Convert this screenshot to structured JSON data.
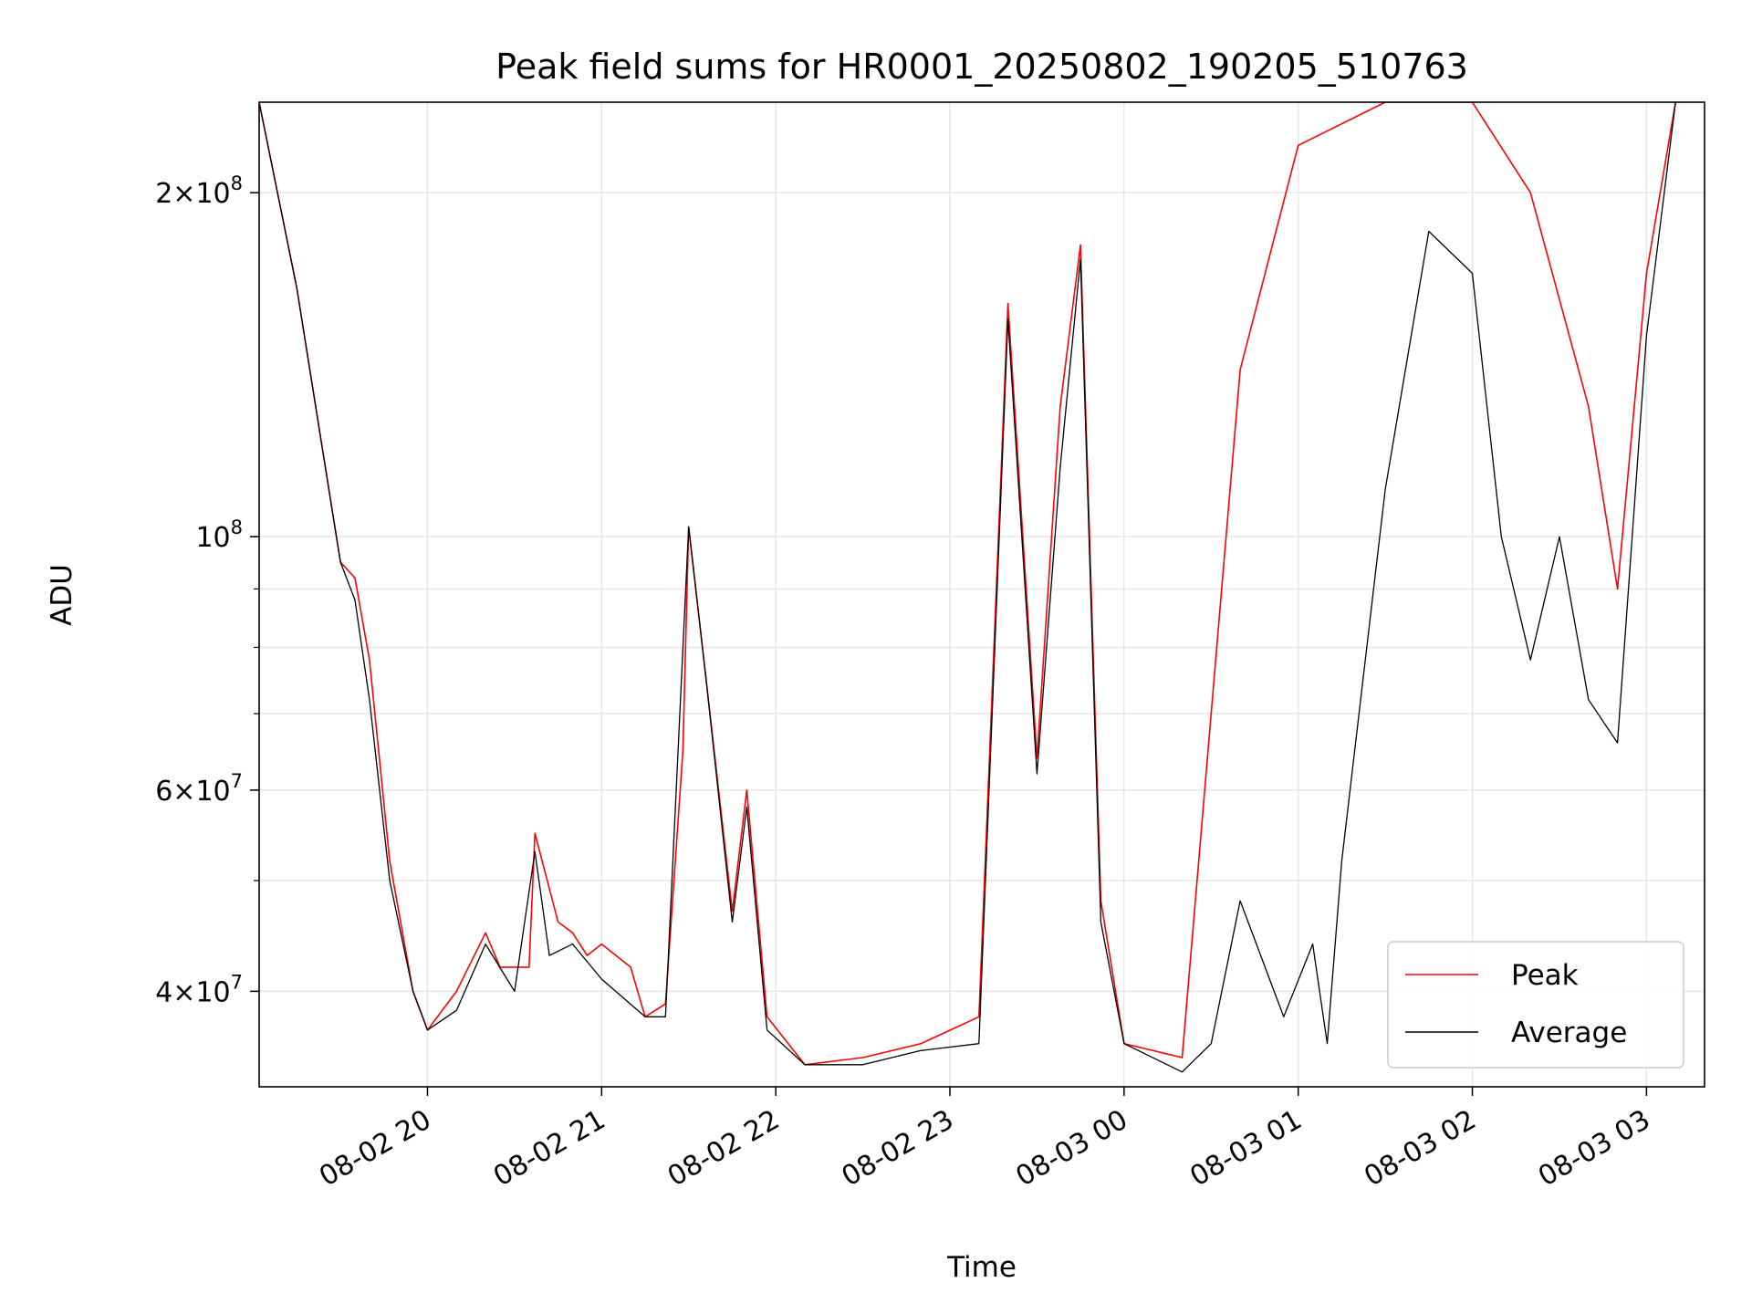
{
  "chart_data": {
    "type": "line",
    "title": "Peak field sums for HR0001_20250802_190205_510763",
    "xlabel": "Time",
    "ylabel": "ADU",
    "yscale": "log",
    "grid": true,
    "legend_position": "lower-right",
    "x_range": [
      "2025-08-02 19:02",
      "2025-08-03 03:20"
    ],
    "ylim": [
      33000000,
      240000000
    ],
    "x_ticks": [
      {
        "t": "2025-08-02 20:00",
        "label": "08-02 20"
      },
      {
        "t": "2025-08-02 21:00",
        "label": "08-02 21"
      },
      {
        "t": "2025-08-02 22:00",
        "label": "08-02 22"
      },
      {
        "t": "2025-08-02 23:00",
        "label": "08-02 23"
      },
      {
        "t": "2025-08-03 00:00",
        "label": "08-03 00"
      },
      {
        "t": "2025-08-03 01:00",
        "label": "08-03 01"
      },
      {
        "t": "2025-08-03 02:00",
        "label": "08-03 02"
      },
      {
        "t": "2025-08-03 03:00",
        "label": "08-03 03"
      }
    ],
    "y_ticks": [
      {
        "value": 40000000,
        "base": "4",
        "exp": "7"
      },
      {
        "value": 60000000,
        "base": "6",
        "exp": "7"
      },
      {
        "value": 100000000,
        "base": "",
        "exp": "8"
      },
      {
        "value": 200000000,
        "base": "2",
        "exp": "8"
      }
    ],
    "series": [
      {
        "name": "Peak",
        "color": "#ff0000",
        "points": [
          [
            "2025-08-02 19:02",
            240000000
          ],
          [
            "2025-08-02 19:15",
            165000000
          ],
          [
            "2025-08-02 19:30",
            95000000
          ],
          [
            "2025-08-02 19:35",
            92000000
          ],
          [
            "2025-08-02 19:40",
            78000000
          ],
          [
            "2025-08-02 19:47",
            52000000
          ],
          [
            "2025-08-02 19:55",
            40000000
          ],
          [
            "2025-08-02 20:00",
            37000000
          ],
          [
            "2025-08-02 20:10",
            40000000
          ],
          [
            "2025-08-02 20:20",
            45000000
          ],
          [
            "2025-08-02 20:25",
            42000000
          ],
          [
            "2025-08-02 20:35",
            42000000
          ],
          [
            "2025-08-02 20:37",
            55000000
          ],
          [
            "2025-08-02 20:45",
            46000000
          ],
          [
            "2025-08-02 20:50",
            45000000
          ],
          [
            "2025-08-02 20:55",
            43000000
          ],
          [
            "2025-08-02 21:00",
            44000000
          ],
          [
            "2025-08-02 21:10",
            42000000
          ],
          [
            "2025-08-02 21:15",
            38000000
          ],
          [
            "2025-08-02 21:22",
            39000000
          ],
          [
            "2025-08-02 21:28",
            65000000
          ],
          [
            "2025-08-02 21:30",
            102000000
          ],
          [
            "2025-08-02 21:36",
            75000000
          ],
          [
            "2025-08-02 21:45",
            47000000
          ],
          [
            "2025-08-02 21:50",
            60000000
          ],
          [
            "2025-08-02 21:57",
            38000000
          ],
          [
            "2025-08-02 22:10",
            34500000
          ],
          [
            "2025-08-02 22:30",
            35000000
          ],
          [
            "2025-08-02 22:50",
            36000000
          ],
          [
            "2025-08-02 23:10",
            38000000
          ],
          [
            "2025-08-02 23:20",
            160000000
          ],
          [
            "2025-08-02 23:30",
            64000000
          ],
          [
            "2025-08-02 23:38",
            130000000
          ],
          [
            "2025-08-02 23:45",
            180000000
          ],
          [
            "2025-08-02 23:52",
            48000000
          ],
          [
            "2025-08-03 00:00",
            36000000
          ],
          [
            "2025-08-03 00:20",
            35000000
          ],
          [
            "2025-08-03 00:40",
            140000000
          ],
          [
            "2025-08-03 01:00",
            220000000
          ],
          [
            "2025-08-03 01:30",
            240000000
          ],
          [
            "2025-08-03 02:00",
            240000000
          ],
          [
            "2025-08-03 02:20",
            200000000
          ],
          [
            "2025-08-03 02:40",
            130000000
          ],
          [
            "2025-08-03 02:50",
            90000000
          ],
          [
            "2025-08-03 03:00",
            170000000
          ],
          [
            "2025-08-03 03:10",
            240000000
          ]
        ]
      },
      {
        "name": "Average",
        "color": "#000000",
        "points": [
          [
            "2025-08-02 19:02",
            240000000
          ],
          [
            "2025-08-02 19:15",
            165000000
          ],
          [
            "2025-08-02 19:30",
            95000000
          ],
          [
            "2025-08-02 19:35",
            88000000
          ],
          [
            "2025-08-02 19:40",
            72000000
          ],
          [
            "2025-08-02 19:47",
            50000000
          ],
          [
            "2025-08-02 19:55",
            40000000
          ],
          [
            "2025-08-02 20:00",
            37000000
          ],
          [
            "2025-08-02 20:10",
            38500000
          ],
          [
            "2025-08-02 20:20",
            44000000
          ],
          [
            "2025-08-02 20:30",
            40000000
          ],
          [
            "2025-08-02 20:37",
            53000000
          ],
          [
            "2025-08-02 20:42",
            43000000
          ],
          [
            "2025-08-02 20:50",
            44000000
          ],
          [
            "2025-08-02 21:00",
            41000000
          ],
          [
            "2025-08-02 21:15",
            38000000
          ],
          [
            "2025-08-02 21:22",
            38000000
          ],
          [
            "2025-08-02 21:30",
            102000000
          ],
          [
            "2025-08-02 21:36",
            75000000
          ],
          [
            "2025-08-02 21:45",
            46000000
          ],
          [
            "2025-08-02 21:50",
            58000000
          ],
          [
            "2025-08-02 21:57",
            37000000
          ],
          [
            "2025-08-02 22:10",
            34500000
          ],
          [
            "2025-08-02 22:30",
            34500000
          ],
          [
            "2025-08-02 22:50",
            35500000
          ],
          [
            "2025-08-02 23:10",
            36000000
          ],
          [
            "2025-08-02 23:20",
            155000000
          ],
          [
            "2025-08-02 23:30",
            62000000
          ],
          [
            "2025-08-02 23:38",
            115000000
          ],
          [
            "2025-08-02 23:45",
            175000000
          ],
          [
            "2025-08-02 23:52",
            46000000
          ],
          [
            "2025-08-03 00:00",
            36000000
          ],
          [
            "2025-08-03 00:20",
            34000000
          ],
          [
            "2025-08-03 00:30",
            36000000
          ],
          [
            "2025-08-03 00:40",
            48000000
          ],
          [
            "2025-08-03 00:55",
            38000000
          ],
          [
            "2025-08-03 01:05",
            44000000
          ],
          [
            "2025-08-03 01:10",
            36000000
          ],
          [
            "2025-08-03 01:15",
            52000000
          ],
          [
            "2025-08-03 01:30",
            110000000
          ],
          [
            "2025-08-03 01:45",
            185000000
          ],
          [
            "2025-08-03 02:00",
            170000000
          ],
          [
            "2025-08-03 02:10",
            100000000
          ],
          [
            "2025-08-03 02:20",
            78000000
          ],
          [
            "2025-08-03 02:30",
            100000000
          ],
          [
            "2025-08-03 02:40",
            72000000
          ],
          [
            "2025-08-03 02:50",
            66000000
          ],
          [
            "2025-08-03 03:00",
            150000000
          ],
          [
            "2025-08-03 03:10",
            240000000
          ]
        ]
      }
    ]
  }
}
